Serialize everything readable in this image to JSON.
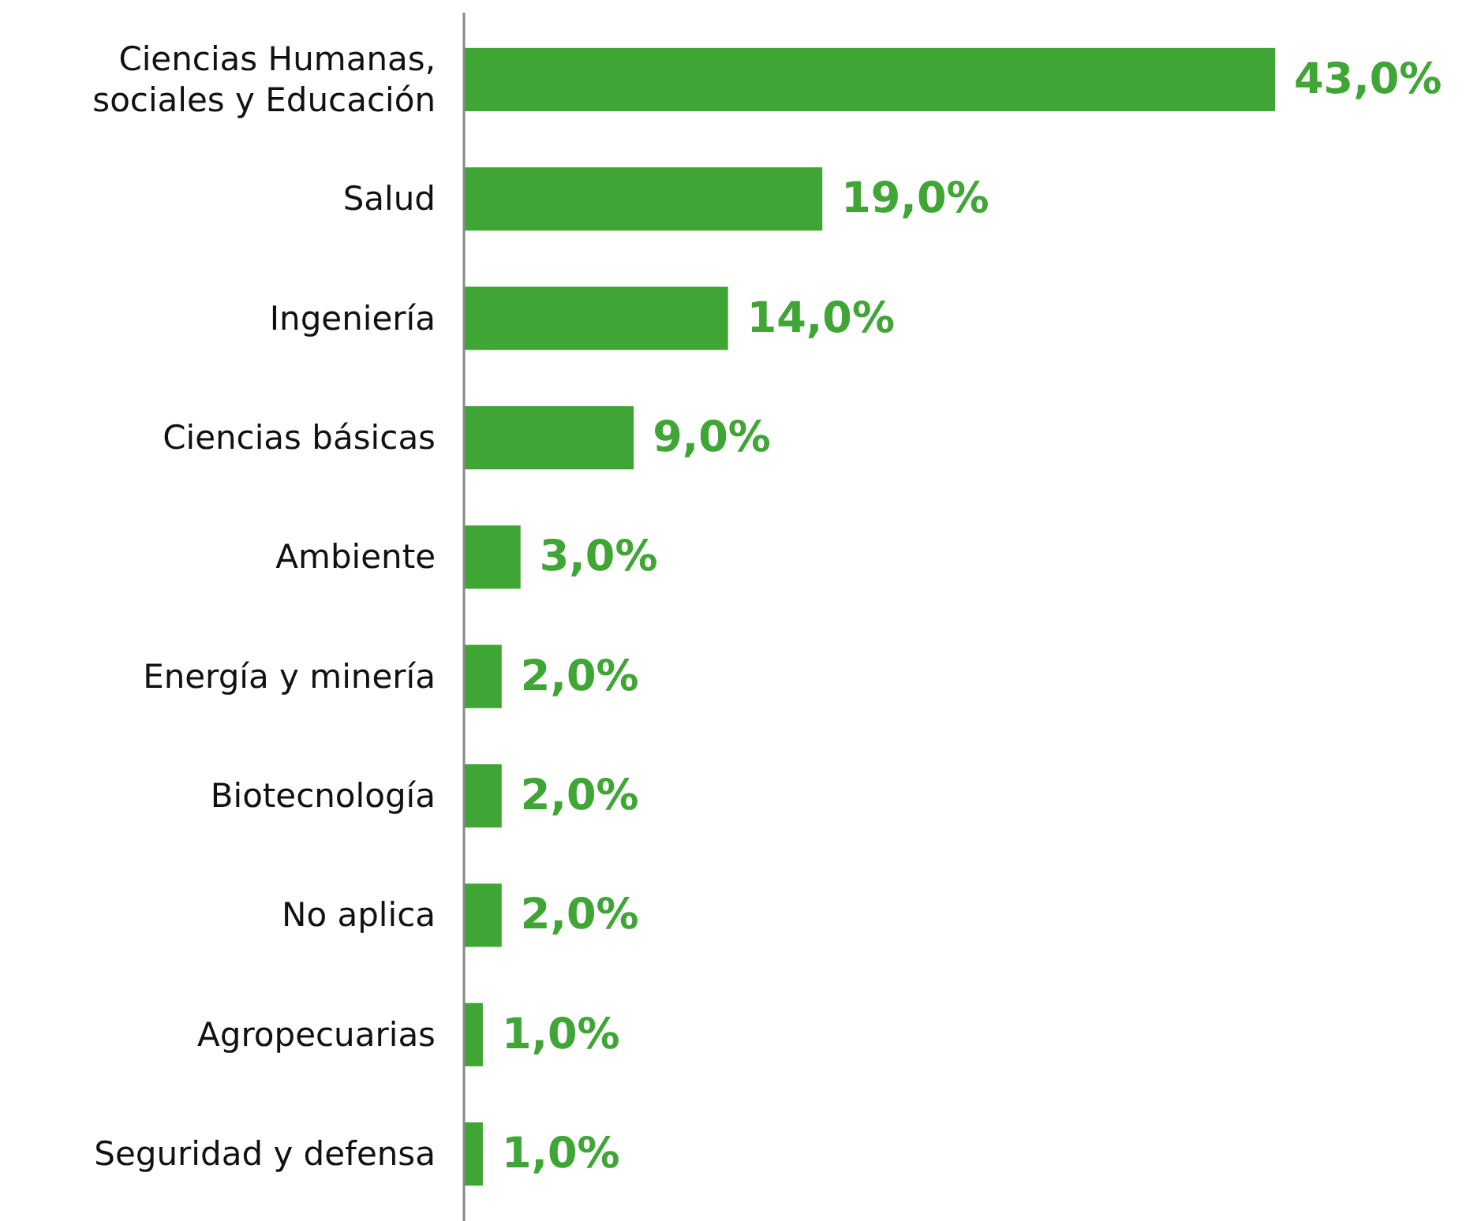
{
  "chart_data": {
    "type": "bar",
    "orientation": "horizontal",
    "categories": [
      "Ciencias Humanas, sociales y Educación",
      "Salud",
      "Ingeniería",
      "Ciencias básicas",
      "Ambiente",
      "Energía y minería",
      "Biotecnología",
      "No aplica",
      "Agropecuarias",
      "Seguridad y defensa"
    ],
    "values": [
      43,
      19,
      14,
      9,
      3,
      2,
      2,
      2,
      1,
      1
    ],
    "value_labels": [
      "43,0%",
      "19,0%",
      "14,0%",
      "9,0%",
      "3,0%",
      "2,0%",
      "2,0%",
      "2,0%",
      "1,0%",
      "1,0%"
    ],
    "color": "#3fa535"
  }
}
